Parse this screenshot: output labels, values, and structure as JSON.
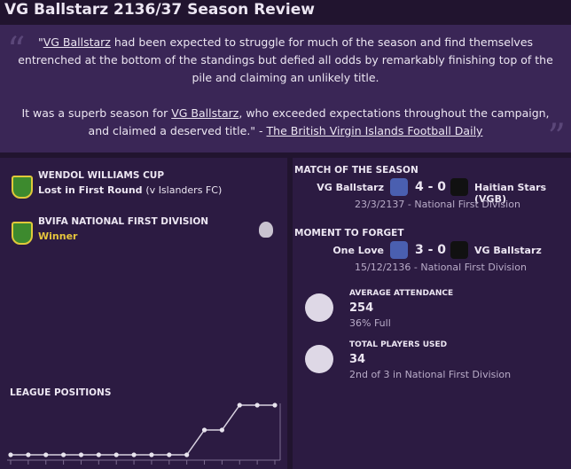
{
  "header": {
    "title": "VG Ballstarz 2136/37 Season Review"
  },
  "quote": {
    "paragraphs": [
      [
        "\"",
        {
          "text": "VG Ballstarz",
          "underline": true
        },
        " had been expected to struggle for much of the season and find themselves entrenched at the bottom of the standings but defied all odds by remarkably finishing top of the pile and claiming an unlikely title."
      ],
      [
        "It was a superb season for ",
        {
          "text": "VG Ballstarz",
          "underline": true
        },
        ", who exceeded expectations throughout the campaign, and claimed a deserved title.\" - ",
        {
          "text": "The British Virgin Islands Football Daily",
          "underline": true
        }
      ]
    ]
  },
  "competitions": [
    {
      "name": "WENDOL WILLIAMS CUP",
      "result": "Lost in First Round",
      "detail": "(v Islanders FC)"
    },
    {
      "name": "BVIFA NATIONAL FIRST DIVISION",
      "result": "Winner"
    }
  ],
  "matches": [
    {
      "label": "MATCH OF THE SEASON",
      "home": "VG Ballstarz",
      "score": "4 - 0",
      "away": "Haitian Stars (VGB)",
      "info": "23/3/2137 - National First Division"
    },
    {
      "label": "MOMENT TO FORGET",
      "home": "One Love",
      "score": "3 - 0",
      "away": "VG Ballstarz",
      "info": "15/12/2136 - National First Division"
    }
  ],
  "stats": [
    {
      "label": "AVERAGE ATTENDANCE",
      "value": 254,
      "sub": "36% Full"
    },
    {
      "label": "TOTAL PLAYERS USED",
      "value": 34,
      "sub": "2nd of 3 in National First Division"
    }
  ],
  "league_positions": {
    "title": "LEAGUE POSITIONS",
    "values": [
      3,
      3,
      3,
      3,
      3,
      3,
      3,
      3,
      3,
      3,
      3,
      2,
      2,
      1,
      1,
      1
    ],
    "ylim": [
      3,
      1
    ]
  }
}
